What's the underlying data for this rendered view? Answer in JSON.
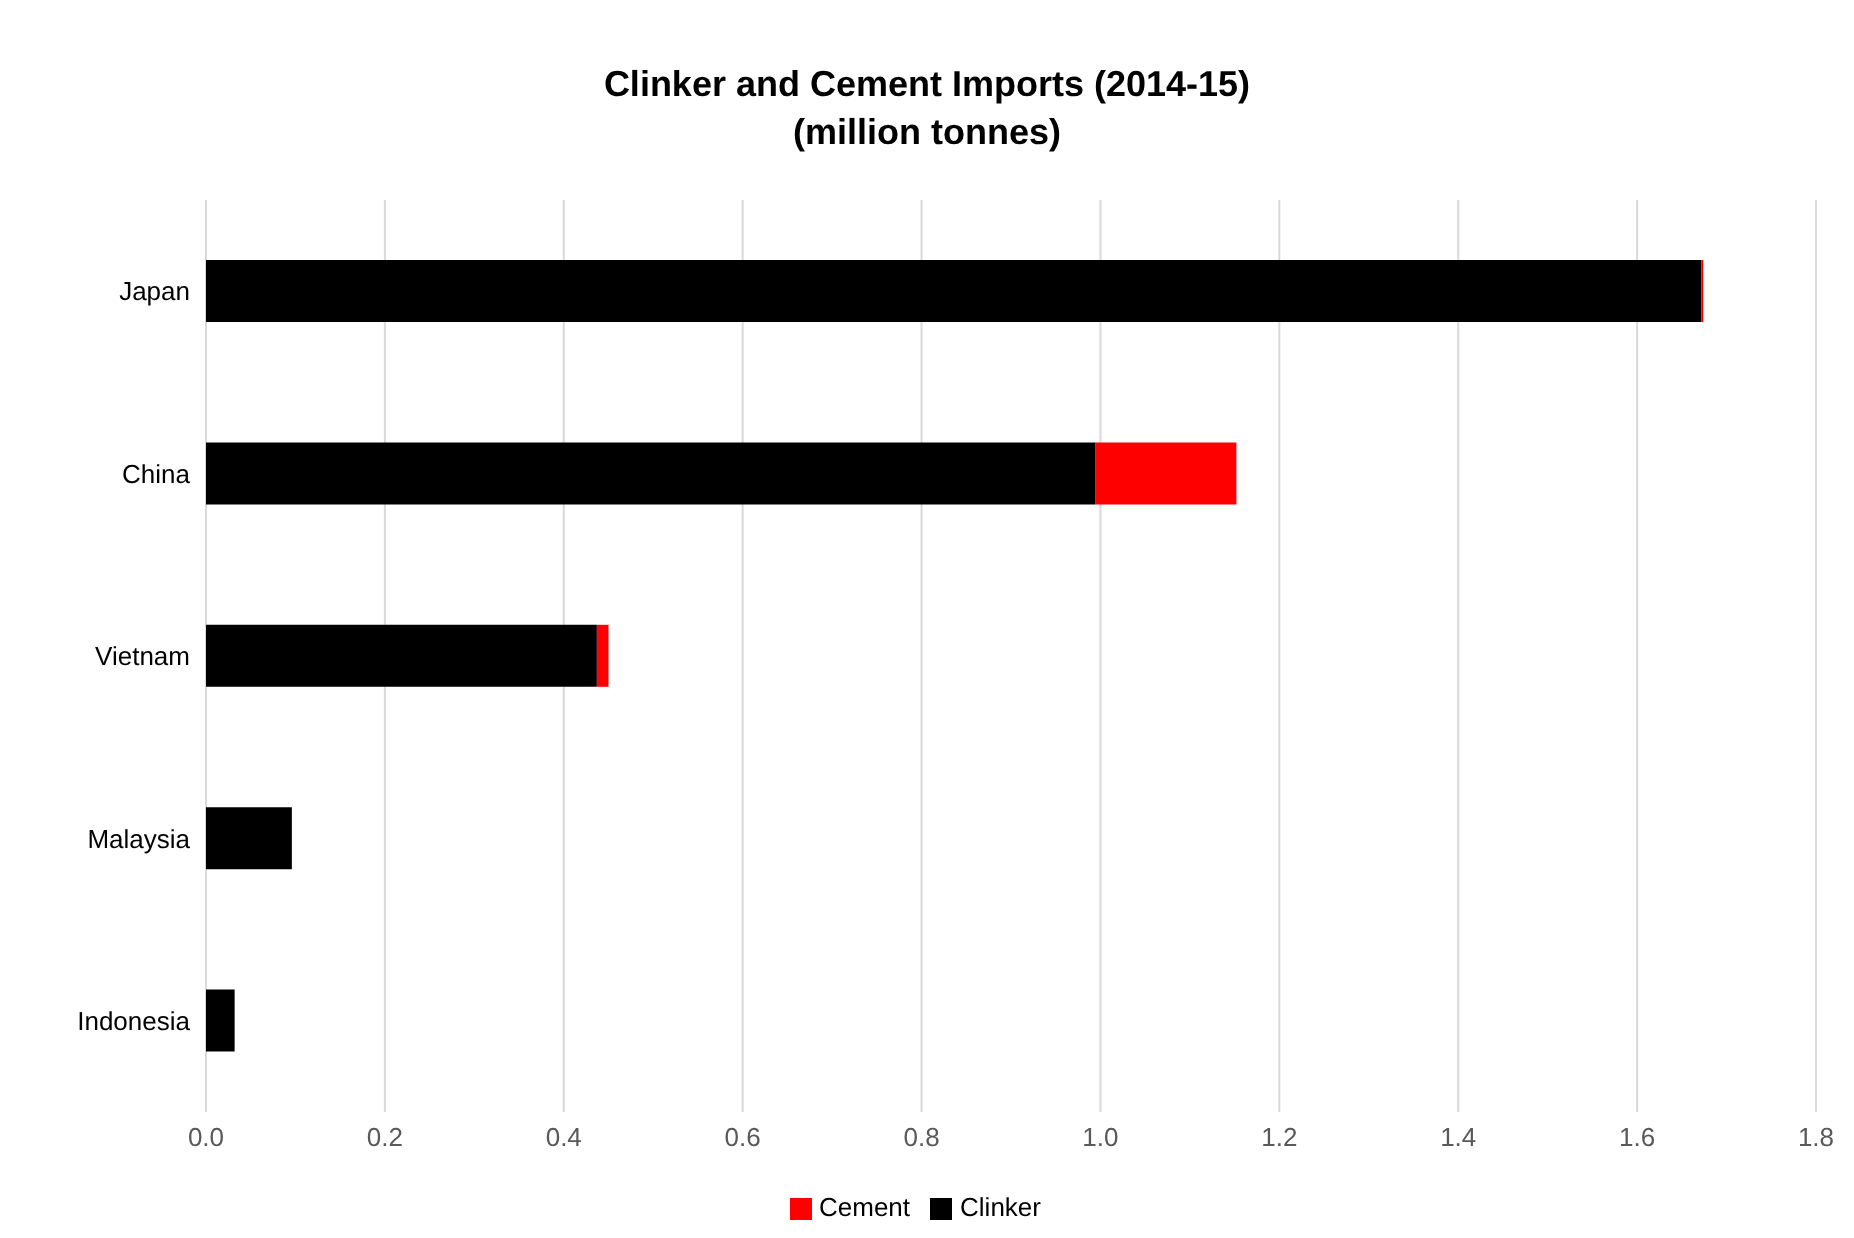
{
  "chart_data": {
    "type": "bar",
    "orientation": "horizontal",
    "stacked": true,
    "title": "Clinker and Cement Imports (2014-15)\n(million tonnes)",
    "categories": [
      "Japan",
      "China",
      "Vietnam",
      "Malaysia",
      "Indonesia"
    ],
    "series": [
      {
        "name": "Clinker",
        "color": "#000000",
        "values": [
          1.672,
          0.994,
          0.437,
          0.096,
          0.032
        ]
      },
      {
        "name": "Cement",
        "color": "#ff0000",
        "values": [
          0.002,
          0.158,
          0.013,
          0,
          0
        ]
      }
    ],
    "xlim": [
      0,
      1.8
    ],
    "xticks": [
      {
        "value": 0,
        "label": "0.0"
      },
      {
        "value": 0.2,
        "label": "0.2"
      },
      {
        "value": 0.4,
        "label": "0.4"
      },
      {
        "value": 0.6,
        "label": "0.6"
      },
      {
        "value": 0.8,
        "label": "0.8"
      },
      {
        "value": 1,
        "label": "1.0"
      },
      {
        "value": 1.2,
        "label": "1.2"
      },
      {
        "value": 1.4,
        "label": "1.4"
      },
      {
        "value": 1.6,
        "label": "1.6"
      },
      {
        "value": 1.8,
        "label": "1.8"
      }
    ],
    "grid": "x",
    "legend": "bottom"
  }
}
